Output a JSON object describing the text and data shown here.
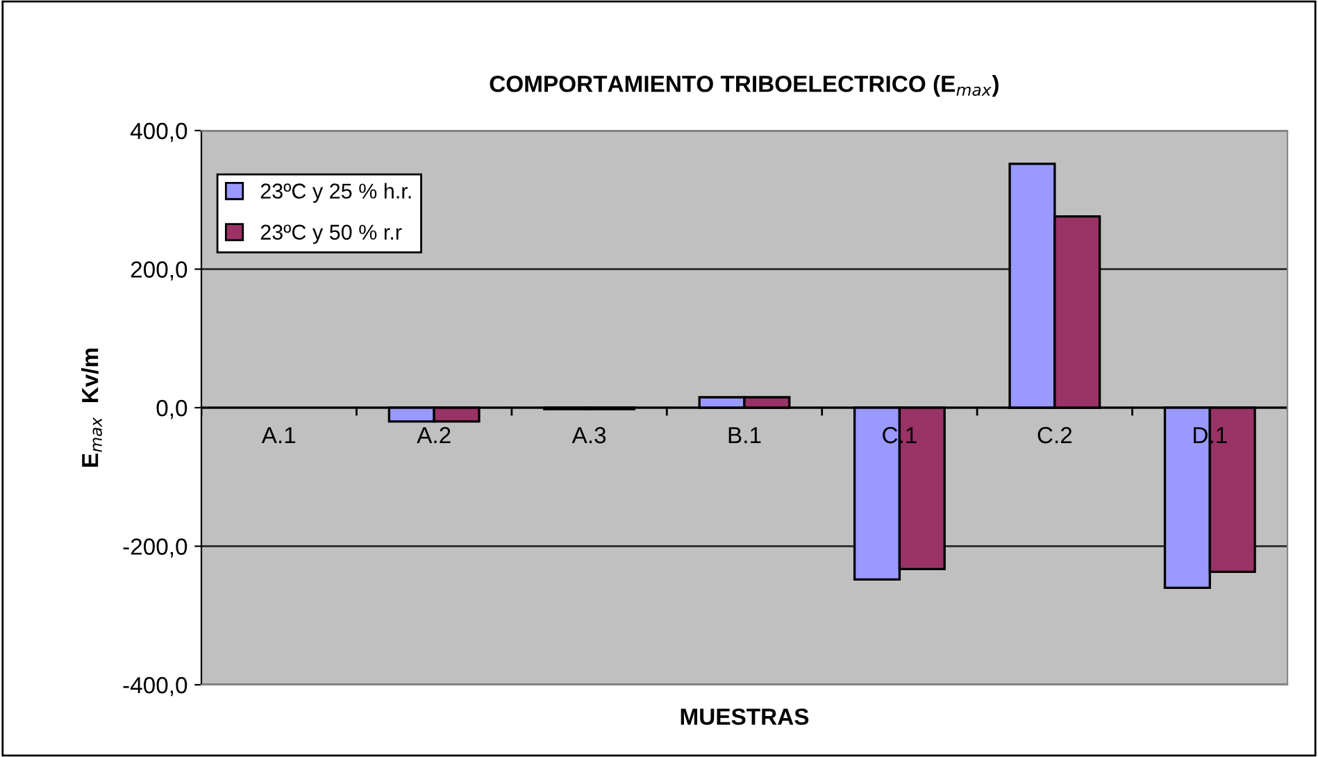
{
  "chart_data": {
    "type": "bar",
    "title": "COMPORTAMIENTO TRIBOELECTRICO (E$_{max}$)",
    "xlabel": "MUESTRAS",
    "ylabel": "E$_{max}$  Kv/m",
    "categories": [
      "A.1",
      "A.2",
      "A.3",
      "B.1",
      "C.1",
      "C.2",
      "D.1"
    ],
    "series": [
      {
        "name": "23ºC y 25 % h.r.",
        "color": "#9999ff",
        "values": [
          null,
          -20,
          -2,
          15,
          -248,
          352,
          -260
        ]
      },
      {
        "name": "23ºC y 50 % r.r",
        "color": "#993366",
        "values": [
          null,
          -20,
          -2,
          15,
          -233,
          276,
          -237
        ]
      }
    ],
    "ylim": [
      -400,
      400
    ],
    "yticks": [
      {
        "value": -400,
        "label": "-400,0"
      },
      {
        "value": -200,
        "label": "-200,0"
      },
      {
        "value": 0,
        "label": "0,0"
      },
      {
        "value": 200,
        "label": "200,0"
      },
      {
        "value": 400,
        "label": "400,0"
      }
    ],
    "grid": "y",
    "legend": "top left"
  }
}
